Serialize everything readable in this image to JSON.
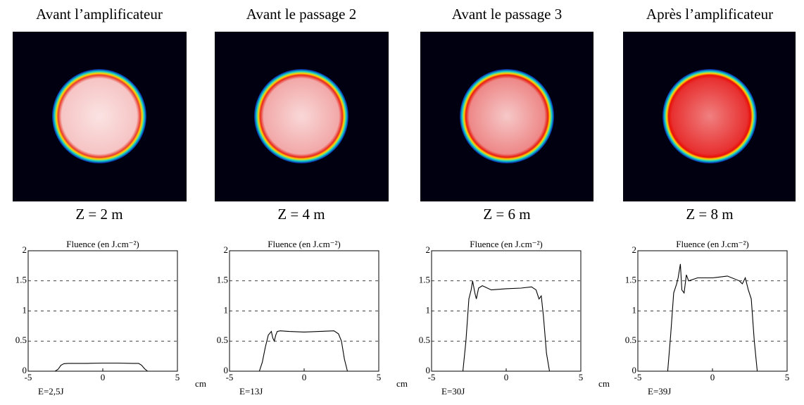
{
  "chart_data": [
    {
      "type": "line",
      "heading": "Avant l’amplificateur",
      "caption": "Z = 2 m",
      "title": "Fluence (en J.cm⁻²)",
      "xlabel": "cm",
      "annotation": "E=2,5J",
      "x": [
        -5,
        -3.2,
        -3.0,
        -2.8,
        -2.6,
        -2.3,
        -1,
        0,
        1,
        2.0,
        2.4,
        2.6,
        2.8,
        3.0,
        5
      ],
      "values": [
        0,
        0,
        0.03,
        0.1,
        0.125,
        0.13,
        0.13,
        0.135,
        0.135,
        0.13,
        0.13,
        0.1,
        0.04,
        0,
        0
      ],
      "color": "#000000",
      "xlim": [
        -5,
        5
      ],
      "xticks": [
        -5,
        0,
        5
      ],
      "ylim": [
        0,
        2
      ],
      "yticks": [
        0,
        0.5,
        1,
        1.5,
        2
      ],
      "grid": true
    },
    {
      "type": "line",
      "heading": "Avant le passage 2",
      "caption": "Z = 4 m",
      "title": "Fluence (en J.cm⁻²)",
      "xlabel": "cm",
      "annotation": "E=13J",
      "x": [
        -5,
        -3.0,
        -2.8,
        -2.6,
        -2.4,
        -2.2,
        -2.1,
        -2.0,
        -1.9,
        -1.8,
        -1.6,
        -1.0,
        0,
        1.0,
        2.0,
        2.3,
        2.5,
        2.7,
        2.9,
        5
      ],
      "values": [
        0,
        0,
        0.15,
        0.4,
        0.6,
        0.66,
        0.55,
        0.5,
        0.6,
        0.66,
        0.67,
        0.66,
        0.65,
        0.66,
        0.67,
        0.62,
        0.5,
        0.2,
        0,
        0
      ],
      "color": "#000000",
      "xlim": [
        -5,
        5
      ],
      "xticks": [
        -5,
        0,
        5
      ],
      "ylim": [
        0,
        2
      ],
      "yticks": [
        0,
        0.5,
        1,
        1.5,
        2
      ],
      "grid": true
    },
    {
      "type": "line",
      "heading": "Avant le passage 3",
      "caption": "Z = 6 m",
      "title": "Fluence (en J.cm⁻²)",
      "xlabel": "cm",
      "annotation": "E=30J",
      "x": [
        -5,
        -2.9,
        -2.7,
        -2.5,
        -2.35,
        -2.25,
        -2.1,
        -2.0,
        -1.85,
        -1.6,
        -1.0,
        0,
        1.0,
        1.7,
        2.0,
        2.2,
        2.35,
        2.5,
        2.7,
        2.9,
        5
      ],
      "values": [
        0,
        0,
        0.5,
        1.2,
        1.35,
        1.5,
        1.3,
        1.2,
        1.38,
        1.42,
        1.35,
        1.37,
        1.38,
        1.4,
        1.35,
        1.2,
        1.25,
        0.9,
        0.3,
        0,
        0
      ],
      "color": "#000000",
      "xlim": [
        -5,
        5
      ],
      "xticks": [
        -5,
        0,
        5
      ],
      "ylim": [
        0,
        2
      ],
      "yticks": [
        0,
        0.5,
        1,
        1.5,
        2
      ],
      "grid": true
    },
    {
      "type": "line",
      "heading": "Après l’amplificateur",
      "caption": "Z = 8 m",
      "title": "Fluence (en J.cm⁻²)",
      "annotation": "E=39J",
      "x": [
        -5,
        -3.0,
        -2.8,
        -2.6,
        -2.4,
        -2.3,
        -2.15,
        -2.05,
        -1.9,
        -1.75,
        -1.6,
        -1.0,
        0,
        1.0,
        1.8,
        2.0,
        2.2,
        2.4,
        2.6,
        2.8,
        3.0,
        5
      ],
      "values": [
        0,
        0,
        0.6,
        1.3,
        1.45,
        1.55,
        1.78,
        1.35,
        1.3,
        1.6,
        1.5,
        1.55,
        1.55,
        1.58,
        1.5,
        1.45,
        1.55,
        1.35,
        1.2,
        0.5,
        0,
        0
      ],
      "color": "#000000",
      "xlim": [
        -5,
        5
      ],
      "xticks": [
        -5,
        0,
        5
      ],
      "ylim": [
        0,
        2
      ],
      "yticks": [
        0,
        0.5,
        1,
        1.5,
        2
      ],
      "grid": true
    }
  ]
}
